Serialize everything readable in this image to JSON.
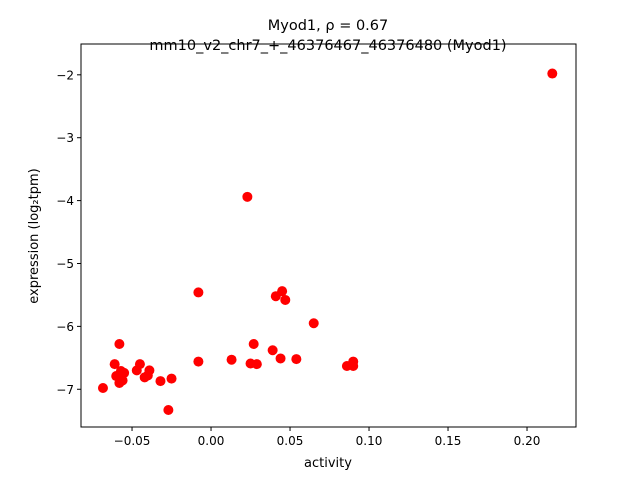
{
  "chart_data": {
    "type": "scatter",
    "title_line1": "Myod1, ρ = 0.67",
    "title_line2": "mm10_v2_chr7_+_46376467_46376480 (Myod1)",
    "xlabel": "activity",
    "ylabel": "expression (log₂tpm)",
    "xlim": [
      -0.0823,
      0.231
    ],
    "ylim": [
      -7.6,
      -1.51
    ],
    "xticks": [
      -0.05,
      0.0,
      0.05,
      0.1,
      0.15,
      0.2
    ],
    "xtick_labels": [
      "−0.05",
      "0.00",
      "0.05",
      "0.10",
      "0.15",
      "0.20"
    ],
    "yticks": [
      -7,
      -6,
      -5,
      -4,
      -3,
      -2
    ],
    "ytick_labels": [
      "−7",
      "−6",
      "−5",
      "−4",
      "−3",
      "−2"
    ],
    "marker_color": "#ff0000",
    "grid": false,
    "points": [
      [
        -0.0684,
        -6.98
      ],
      [
        -0.058,
        -6.28
      ],
      [
        -0.061,
        -6.6
      ],
      [
        -0.06,
        -6.79
      ],
      [
        -0.057,
        -6.71
      ],
      [
        -0.056,
        -6.86
      ],
      [
        -0.058,
        -6.9
      ],
      [
        -0.055,
        -6.74
      ],
      [
        -0.047,
        -6.7
      ],
      [
        -0.045,
        -6.6
      ],
      [
        -0.042,
        -6.81
      ],
      [
        -0.039,
        -6.7
      ],
      [
        -0.04,
        -6.78
      ],
      [
        -0.032,
        -6.87
      ],
      [
        -0.025,
        -6.83
      ],
      [
        -0.027,
        -7.33
      ],
      [
        -0.008,
        -5.46
      ],
      [
        -0.008,
        -6.56
      ],
      [
        0.023,
        -3.94
      ],
      [
        0.013,
        -6.53
      ],
      [
        0.025,
        -6.59
      ],
      [
        0.029,
        -6.6
      ],
      [
        0.027,
        -6.28
      ],
      [
        0.039,
        -6.38
      ],
      [
        0.041,
        -5.52
      ],
      [
        0.045,
        -5.44
      ],
      [
        0.047,
        -5.58
      ],
      [
        0.044,
        -6.51
      ],
      [
        0.054,
        -6.52
      ],
      [
        0.065,
        -5.95
      ],
      [
        0.086,
        -6.63
      ],
      [
        0.09,
        -6.63
      ],
      [
        0.09,
        -6.56
      ],
      [
        0.216,
        -1.98
      ]
    ]
  }
}
